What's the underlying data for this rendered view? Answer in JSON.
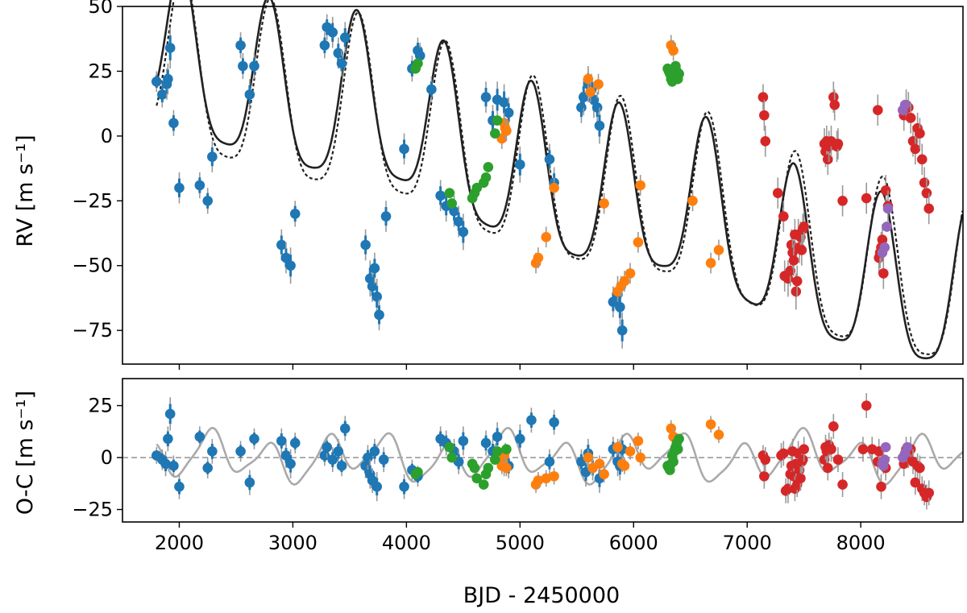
{
  "chart_data": [
    {
      "type": "scatter",
      "panel": "top",
      "ylabel": "RV [m s⁻¹]",
      "xlim": [
        1500,
        8900
      ],
      "ylim": [
        -88,
        50
      ],
      "yticks": [
        50,
        25,
        0,
        -25,
        -50,
        -75
      ],
      "ytick_labels": [
        "50",
        "25",
        "0",
        "−25",
        "−50",
        "−75"
      ],
      "colors": {
        "blue": "#1f77b4",
        "orange": "#ff7f0e",
        "green": "#2ca02c",
        "red": "#d62728",
        "purple": "#9467bd",
        "model_solid": "#222222",
        "model_dashed": "#222222",
        "errorbar": "#999999"
      },
      "series": [
        {
          "name": "blue",
          "color": "#1f77b4",
          "x": [
            1800,
            1850,
            1890,
            1900,
            1920,
            1950,
            2000,
            2180,
            2250,
            2290,
            2540,
            2560,
            2620,
            2660,
            2900,
            2940,
            2980,
            3020,
            3280,
            3300,
            3350,
            3400,
            3430,
            3460,
            3640,
            3680,
            3700,
            3720,
            3740,
            3760,
            3820,
            3980,
            4050,
            4100,
            4120,
            4220,
            4300,
            4350,
            4420,
            4460,
            4500,
            4700,
            4760,
            4800,
            4860,
            4900,
            5000,
            5260,
            5300,
            5540,
            5560,
            5600,
            5630,
            5650,
            5680,
            5700,
            5820,
            5860,
            5880,
            5900
          ],
          "y": [
            21,
            16,
            20,
            22,
            34,
            5,
            -20,
            -19,
            -25,
            -8,
            35,
            27,
            16,
            27,
            -42,
            -47,
            -50,
            -30,
            35,
            42,
            40,
            32,
            28,
            38,
            -42,
            -55,
            -58,
            -51,
            -62,
            -69,
            -31,
            -5,
            26,
            33,
            31,
            18,
            -23,
            -27,
            -29,
            -33,
            -37,
            15,
            6,
            14,
            13,
            9,
            -11,
            -9,
            -18,
            11,
            15,
            20,
            18,
            14,
            11,
            4,
            -64,
            -61,
            -66,
            -75
          ],
          "err": [
            4,
            5,
            6,
            6,
            8,
            5,
            6,
            5,
            5,
            6,
            5,
            5,
            6,
            5,
            6,
            6,
            7,
            5,
            5,
            5,
            6,
            6,
            5,
            6,
            6,
            7,
            6,
            6,
            7,
            6,
            6,
            6,
            5,
            5,
            5,
            5,
            6,
            6,
            6,
            6,
            7,
            6,
            6,
            7,
            7,
            6,
            7,
            6,
            6,
            6,
            7,
            7,
            6,
            7,
            6,
            7,
            6,
            7,
            7,
            7
          ]
        },
        {
          "name": "orange",
          "x": [
            4840,
            4860,
            4870,
            4880,
            5140,
            5160,
            5230,
            5300,
            5600,
            5620,
            5690,
            5740,
            5860,
            5890,
            5920,
            5970,
            6040,
            6060,
            6520,
            6680,
            6750,
            6330,
            6350
          ],
          "y": [
            -1,
            5,
            3,
            2,
            -49,
            -47,
            -39,
            -20,
            22,
            17,
            20,
            -26,
            -60,
            -58,
            -56,
            -53,
            -41,
            -19,
            -25,
            -49,
            -44,
            35,
            33
          ],
          "err": [
            4,
            4,
            4,
            4,
            4,
            4,
            4,
            4,
            4,
            4,
            4,
            4,
            4,
            4,
            4,
            4,
            4,
            4,
            4,
            4,
            4,
            4,
            4
          ]
        },
        {
          "name": "green",
          "x": [
            4080,
            4100,
            4380,
            4400,
            4580,
            4600,
            4620,
            4680,
            4700,
            4720,
            4780,
            4800,
            6300,
            6310,
            6320,
            6330,
            6340,
            6350,
            6360,
            6370,
            6380,
            6390,
            6400
          ],
          "y": [
            26,
            28,
            -22,
            -26,
            -24,
            -22,
            -20,
            -18,
            -16,
            -12,
            1,
            6,
            26,
            25,
            24,
            22,
            21,
            23,
            24,
            27,
            25,
            22,
            24
          ],
          "err": [
            2,
            2,
            2,
            2,
            2,
            2,
            2,
            2,
            2,
            2,
            2,
            2,
            2,
            2,
            2,
            2,
            2,
            2,
            2,
            2,
            2,
            2,
            2
          ]
        },
        {
          "name": "red",
          "x": [
            7140,
            7150,
            7160,
            7270,
            7320,
            7330,
            7360,
            7380,
            7390,
            7400,
            7410,
            7420,
            7430,
            7440,
            7450,
            7460,
            7470,
            7480,
            7490,
            7500,
            7680,
            7690,
            7700,
            7710,
            7720,
            7740,
            7760,
            7770,
            7790,
            7840,
            8050,
            8150,
            8160,
            8170,
            8180,
            8190,
            8200,
            8220,
            8240,
            8380,
            8400,
            8420,
            8440,
            8460,
            8480,
            8500,
            8520,
            8540,
            8560,
            8580,
            8600,
            7800
          ],
          "y": [
            15,
            8,
            -2,
            -22,
            -31,
            -54,
            -55,
            -52,
            -42,
            -45,
            -48,
            -38,
            -60,
            -56,
            -38,
            -43,
            -39,
            -44,
            -36,
            -35,
            -3,
            -6,
            -2,
            -9,
            -4,
            -2,
            15,
            12,
            -4,
            -25,
            -24,
            10,
            -47,
            -45,
            -43,
            -40,
            -53,
            -21,
            -27,
            8,
            12,
            11,
            7,
            -2,
            -5,
            3,
            1,
            -9,
            -18,
            -22,
            -28,
            -3
          ],
          "err": [
            5,
            6,
            6,
            6,
            6,
            6,
            7,
            6,
            6,
            6,
            6,
            6,
            7,
            6,
            6,
            6,
            6,
            6,
            6,
            6,
            6,
            6,
            6,
            6,
            6,
            6,
            6,
            6,
            6,
            6,
            6,
            6,
            6,
            6,
            6,
            6,
            6,
            6,
            6,
            6,
            6,
            6,
            6,
            6,
            6,
            6,
            6,
            6,
            6,
            6,
            6,
            6
          ]
        },
        {
          "name": "purple",
          "x": [
            8190,
            8210,
            8230,
            8240,
            8370,
            8390
          ],
          "y": [
            -45,
            -43,
            -35,
            -28,
            10,
            12
          ],
          "err": [
            2,
            2,
            2,
            2,
            2,
            2
          ]
        }
      ],
      "models": [
        {
          "name": "solid",
          "style": "solid",
          "amplitudes": [
            31,
            4
          ],
          "periods": [
            770,
            2600
          ],
          "phases": [
            1250,
            6500
          ],
          "trend": [
            0.0,
            -0.0035
          ],
          "offset": 0
        },
        {
          "name": "dashed",
          "style": "dashed",
          "amplitudes": [
            33,
            3
          ],
          "periods": [
            770,
            2600
          ],
          "phases": [
            1265,
            6500
          ],
          "trend": [
            0.0,
            -0.0032
          ],
          "offset": -1
        }
      ]
    },
    {
      "type": "scatter",
      "panel": "bottom",
      "xlabel": "BJD - 2450000",
      "ylabel": "O-C [m s⁻¹]",
      "xlim": [
        1500,
        8900
      ],
      "ylim": [
        -31,
        38
      ],
      "xticks": [
        2000,
        3000,
        4000,
        5000,
        6000,
        7000,
        8000
      ],
      "xtick_labels": [
        "2000",
        "3000",
        "4000",
        "5000",
        "6000",
        "7000",
        "8000"
      ],
      "yticks": [
        25,
        0,
        -25
      ],
      "ytick_labels": [
        "25",
        "0",
        "−25"
      ],
      "zero_line": 0,
      "series": [
        {
          "name": "blue",
          "x": [
            1800,
            1850,
            1880,
            1900,
            1920,
            1950,
            2000,
            2180,
            2250,
            2290,
            2540,
            2620,
            2660,
            2900,
            2940,
            2980,
            3020,
            3280,
            3300,
            3350,
            3400,
            3430,
            3460,
            3640,
            3660,
            3680,
            3700,
            3720,
            3740,
            3800,
            3980,
            4050,
            4100,
            4300,
            4350,
            4420,
            4460,
            4500,
            4700,
            4760,
            4800,
            4860,
            4900,
            5000,
            5100,
            5260,
            5300,
            5540,
            5580,
            5600,
            5640,
            5700,
            5820,
            5860,
            5880,
            5900
          ],
          "y": [
            1,
            -1,
            -3,
            9,
            21,
            -4,
            -14,
            10,
            -5,
            3,
            3,
            -12,
            9,
            8,
            1,
            -3,
            7,
            1,
            5,
            -1,
            3,
            -4,
            14,
            -4,
            0,
            -8,
            -11,
            3,
            -14,
            -1,
            -14,
            -6,
            -9,
            9,
            7,
            3,
            -2,
            8,
            7,
            3,
            10,
            -2,
            -4,
            9,
            18,
            -2,
            17,
            -2,
            -7,
            2,
            -5,
            -10,
            4,
            -2,
            -4,
            4
          ],
          "err": [
            4,
            5,
            6,
            6,
            8,
            5,
            6,
            5,
            5,
            6,
            5,
            6,
            5,
            6,
            6,
            7,
            5,
            5,
            5,
            6,
            6,
            5,
            6,
            6,
            6,
            7,
            6,
            6,
            7,
            6,
            6,
            5,
            5,
            6,
            6,
            6,
            6,
            7,
            6,
            6,
            7,
            7,
            6,
            7,
            6,
            6,
            6,
            6,
            7,
            7,
            6,
            7,
            6,
            7,
            7,
            7
          ]
        },
        {
          "name": "orange",
          "x": [
            4840,
            4850,
            4860,
            4870,
            4880,
            5140,
            5160,
            5230,
            5300,
            5600,
            5640,
            5700,
            5740,
            5860,
            5900,
            5920,
            5970,
            6040,
            6060,
            6330,
            6350,
            6680,
            6750
          ],
          "y": [
            -4,
            -2,
            1,
            3,
            -5,
            -13,
            -11,
            -10,
            -9,
            0,
            -5,
            -3,
            -8,
            5,
            -3,
            -4,
            3,
            8,
            0,
            14,
            10,
            16,
            11
          ],
          "err": [
            4,
            4,
            4,
            4,
            4,
            4,
            4,
            4,
            4,
            4,
            4,
            4,
            4,
            4,
            4,
            4,
            4,
            4,
            4,
            4,
            4,
            4,
            4
          ]
        },
        {
          "name": "green",
          "x": [
            4080,
            4100,
            4380,
            4400,
            4580,
            4600,
            4620,
            4680,
            4700,
            4720,
            4780,
            4800,
            4880,
            6300,
            6310,
            6320,
            6330,
            6340,
            6350,
            6360,
            6370,
            6380,
            6390,
            6400
          ],
          "y": [
            -8,
            -7,
            5,
            0,
            -3,
            -5,
            -10,
            -13,
            -8,
            -5,
            -1,
            3,
            4,
            -4,
            -5,
            -6,
            -3,
            1,
            -2,
            3,
            5,
            7,
            4,
            9
          ],
          "err": [
            2,
            2,
            2,
            2,
            2,
            2,
            2,
            2,
            2,
            2,
            2,
            2,
            2,
            2,
            2,
            2,
            2,
            2,
            2,
            2,
            2,
            2,
            2,
            2
          ]
        },
        {
          "name": "red",
          "x": [
            7140,
            7150,
            7160,
            7300,
            7320,
            7340,
            7360,
            7380,
            7390,
            7400,
            7410,
            7420,
            7430,
            7440,
            7450,
            7460,
            7470,
            7480,
            7490,
            7500,
            7680,
            7690,
            7700,
            7710,
            7720,
            7740,
            7760,
            7800,
            7840,
            8020,
            8050,
            8100,
            8150,
            8160,
            8180,
            8200,
            8220,
            8380,
            8400,
            8420,
            8440,
            8460,
            8480,
            8500,
            8520,
            8540,
            8560,
            8580,
            8600
          ],
          "y": [
            1,
            -9,
            -1,
            1,
            2,
            -16,
            -15,
            -8,
            -4,
            3,
            -9,
            -15,
            -3,
            -13,
            2,
            -6,
            -10,
            -2,
            -1,
            4,
            -1,
            5,
            3,
            -5,
            6,
            4,
            15,
            -1,
            -13,
            4,
            25,
            4,
            -2,
            3,
            -14,
            -2,
            -5,
            -3,
            4,
            1,
            4,
            -2,
            -12,
            -4,
            -5,
            -15,
            -17,
            -19,
            -17
          ],
          "err": [
            5,
            6,
            6,
            6,
            6,
            6,
            7,
            6,
            6,
            6,
            6,
            6,
            7,
            6,
            6,
            6,
            6,
            6,
            6,
            6,
            6,
            6,
            6,
            6,
            6,
            6,
            6,
            6,
            6,
            6,
            6,
            6,
            6,
            6,
            6,
            6,
            6,
            6,
            6,
            6,
            6,
            6,
            6,
            6,
            6,
            6,
            6,
            6,
            6
          ]
        },
        {
          "name": "purple",
          "x": [
            8190,
            8200,
            8210,
            8220,
            8370,
            8390,
            8410
          ],
          "y": [
            -3,
            -4,
            -1,
            5,
            0,
            2,
            5
          ],
          "err": [
            2,
            2,
            2,
            2,
            2,
            2,
            2
          ]
        }
      ],
      "model": {
        "name": "residual-curve",
        "amplitudes": [
          9,
          4,
          2
        ],
        "periods": [
          520,
          1300,
          260
        ],
        "phases": [
          1750,
          2300,
          1800
        ],
        "offset": 0
      }
    }
  ]
}
